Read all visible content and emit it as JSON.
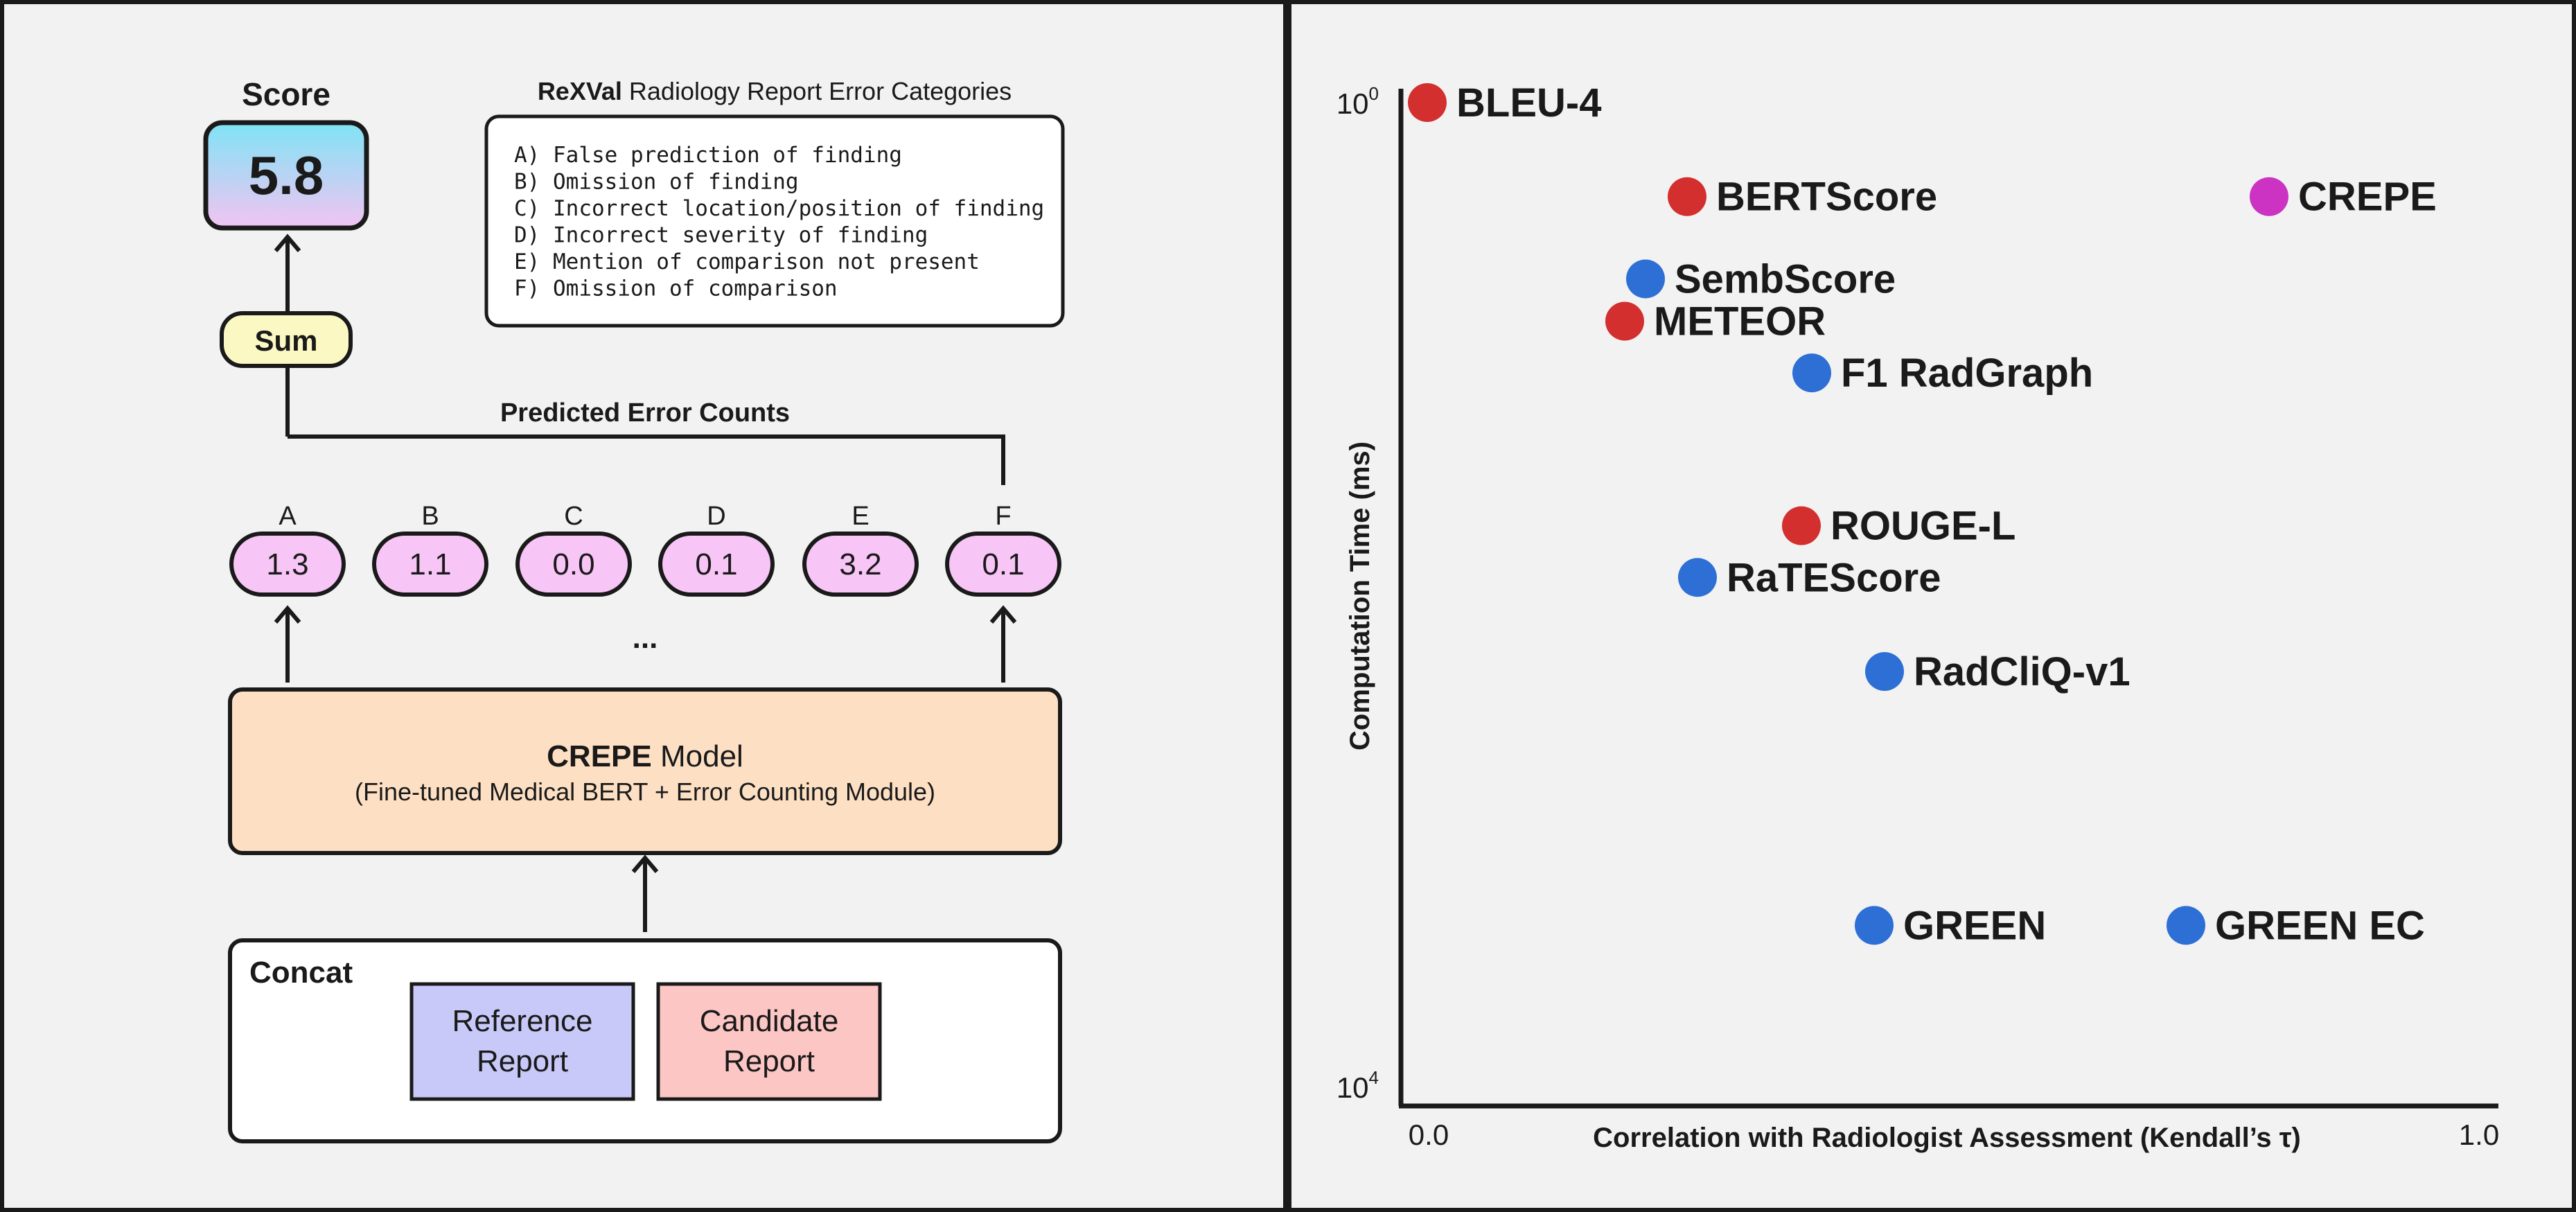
{
  "diagram": {
    "score_label": "Score",
    "score_value": "5.8",
    "sum_label": "Sum",
    "predicted_label": "Predicted Error Counts",
    "categories_title_bold": "ReXVal",
    "categories_title_rest": " Radiology Report Error Categories",
    "categories": [
      "A) False prediction of finding",
      "B) Omission of finding",
      "C) Incorrect location/position of finding",
      "D) Incorrect severity of finding",
      "E) Mention of comparison not present",
      "F) Omission of comparison"
    ],
    "error_counts": [
      {
        "letter": "A",
        "value": "1.3"
      },
      {
        "letter": "B",
        "value": "1.1"
      },
      {
        "letter": "C",
        "value": "0.0"
      },
      {
        "letter": "D",
        "value": "0.1"
      },
      {
        "letter": "E",
        "value": "3.2"
      },
      {
        "letter": "F",
        "value": "0.1"
      }
    ],
    "ellipsis": "...",
    "model_title_bold": "CREPE",
    "model_title_rest": " Model",
    "model_subtitle": "(Fine-tuned Medical BERT + Error Counting Module)",
    "concat_label": "Concat",
    "reference_line1": "Reference",
    "reference_line2": "Report",
    "candidate_line1": "Candidate",
    "candidate_line2": "Report",
    "colors": {
      "score_gradient_top": "#7fe3f5",
      "score_gradient_bottom": "#f2c4f2",
      "sum_fill": "#fcf8c4",
      "count_fill": "#f8c5f7",
      "model_fill": "#fde0c4",
      "reference_fill": "#c8c9f8",
      "candidate_fill": "#fcc6c4"
    }
  },
  "chart_data": {
    "type": "scatter",
    "xlabel": "Correlation with Radiologist Assessment (Kendall’s τ)",
    "ylabel": "Computation Time (ms)",
    "x_tick_labels": [
      "0.0",
      "1.0"
    ],
    "y_tick_base": "10",
    "y_tick_exponents": [
      "0",
      "4"
    ],
    "xlim": [
      0.0,
      1.0
    ],
    "ylim_log10": [
      0,
      4
    ],
    "y_scale": "log",
    "points": [
      {
        "label": "BLEU-4",
        "x": 0.02,
        "y_log10": 0.0,
        "color": "#d42f2f",
        "bold": false
      },
      {
        "label": "BERTScore",
        "x": 0.27,
        "y_log10": 0.4,
        "color": "#d42f2f",
        "bold": false
      },
      {
        "label": "CREPE",
        "x": 0.83,
        "y_log10": 0.4,
        "color": "#cc33c2",
        "bold": true
      },
      {
        "label": "SembScore",
        "x": 0.23,
        "y_log10": 0.75,
        "color": "#2e6fd6",
        "bold": false
      },
      {
        "label": "METEOR",
        "x": 0.21,
        "y_log10": 0.93,
        "color": "#d42f2f",
        "bold": false
      },
      {
        "label": "F1 RadGraph",
        "x": 0.39,
        "y_log10": 1.15,
        "color": "#2e6fd6",
        "bold": false
      },
      {
        "label": "ROUGE-L",
        "x": 0.38,
        "y_log10": 1.8,
        "color": "#d42f2f",
        "bold": false
      },
      {
        "label": "RaTEScore",
        "x": 0.28,
        "y_log10": 2.02,
        "color": "#2e6fd6",
        "bold": false
      },
      {
        "label": "RadCliQ-v1",
        "x": 0.46,
        "y_log10": 2.42,
        "color": "#2e6fd6",
        "bold": false
      },
      {
        "label": "GREEN",
        "x": 0.45,
        "y_log10": 3.5,
        "color": "#2e6fd6",
        "bold": false
      },
      {
        "label": "GREEN EC",
        "x": 0.75,
        "y_log10": 3.5,
        "color": "#2e6fd6",
        "bold": false
      }
    ]
  }
}
